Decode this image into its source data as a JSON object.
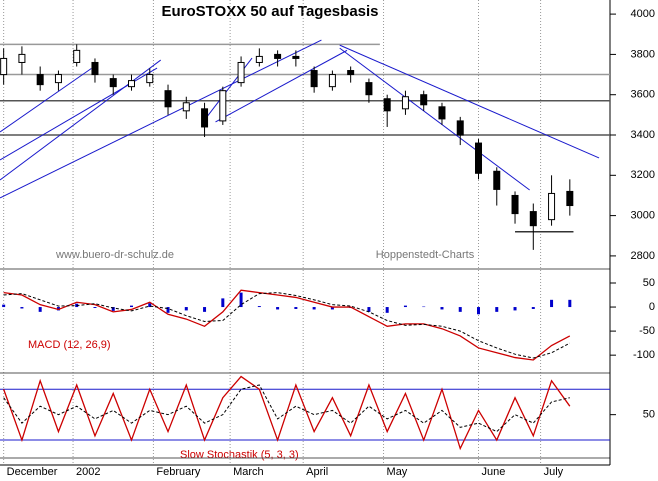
{
  "chart_data": [
    {
      "type": "candlestick",
      "title": "EuroSTOXX 50 auf Tagesbasis",
      "annotations": [
        "www.buero-dr-schulz.de",
        "Hoppenstedt-Charts"
      ],
      "x": [
        0,
        5,
        10,
        15,
        20,
        25,
        30,
        35,
        40,
        45,
        50,
        55,
        60,
        65,
        70,
        75,
        80,
        85,
        90,
        95,
        100,
        105,
        110,
        115,
        120,
        125,
        130,
        135,
        140,
        145,
        150,
        155
      ],
      "open": [
        3700,
        3760,
        3700,
        3660,
        3760,
        3760,
        3680,
        3640,
        3660,
        3620,
        3520,
        3530,
        3470,
        3660,
        3760,
        3800,
        3790,
        3720,
        3640,
        3720,
        3660,
        3580,
        3530,
        3600,
        3540,
        3470,
        3360,
        3220,
        3100,
        3020,
        2980,
        3120
      ],
      "high": [
        3830,
        3840,
        3740,
        3720,
        3850,
        3780,
        3700,
        3700,
        3730,
        3650,
        3590,
        3560,
        3640,
        3790,
        3830,
        3820,
        3820,
        3740,
        3720,
        3740,
        3680,
        3600,
        3620,
        3620,
        3560,
        3490,
        3380,
        3240,
        3120,
        3060,
        3200,
        3180
      ],
      "low": [
        3650,
        3700,
        3620,
        3620,
        3740,
        3660,
        3600,
        3620,
        3640,
        3500,
        3480,
        3390,
        3450,
        3640,
        3740,
        3740,
        3740,
        3610,
        3620,
        3660,
        3560,
        3440,
        3500,
        3520,
        3450,
        3350,
        3180,
        3050,
        2960,
        2830,
        2950,
        3000
      ],
      "close": [
        3780,
        3800,
        3650,
        3700,
        3820,
        3700,
        3640,
        3670,
        3700,
        3540,
        3560,
        3440,
        3620,
        3760,
        3790,
        3780,
        3780,
        3640,
        3700,
        3700,
        3600,
        3520,
        3590,
        3550,
        3480,
        3400,
        3210,
        3130,
        3010,
        2950,
        3110,
        3050
      ],
      "trendlines": [
        {
          "x": [
            -1,
            24
          ],
          "y": [
            3415,
            3730
          ]
        },
        {
          "x": [
            -1,
            42
          ],
          "y": [
            3276,
            3732
          ]
        },
        {
          "x": [
            -1,
            43
          ],
          "y": [
            3177,
            3772
          ]
        },
        {
          "x": [
            -1,
            87
          ],
          "y": [
            3088,
            3871
          ]
        },
        {
          "x": [
            55,
            68
          ],
          "y": [
            3475,
            3782
          ]
        },
        {
          "x": [
            58,
            94
          ],
          "y": [
            3465,
            3820
          ]
        },
        {
          "x": [
            92,
            163
          ],
          "y": [
            3846,
            3286
          ]
        },
        {
          "x": [
            92,
            144
          ],
          "y": [
            3831,
            3127
          ]
        }
      ],
      "levels": [
        {
          "y": 3850,
          "x": [
            -1,
            103
          ],
          "color": "#999999"
        },
        {
          "y": 3700,
          "x": [
            -1,
            166
          ],
          "color": "#999999"
        },
        {
          "y": 3570,
          "x": [
            -1,
            166
          ],
          "color": "#555555"
        },
        {
          "y": 3400,
          "x": [
            -1,
            166
          ],
          "color": "#555555"
        },
        {
          "y": 2920,
          "x": [
            140,
            156
          ],
          "color": "#333333"
        }
      ],
      "xlim": [
        -1,
        166
      ],
      "xticks": [
        {
          "value": 0,
          "label": "December"
        },
        {
          "value": 19,
          "label": "2002"
        },
        {
          "value": 41,
          "label": "February"
        },
        {
          "value": 62,
          "label": "March"
        },
        {
          "value": 82,
          "label": "April"
        },
        {
          "value": 104,
          "label": "May"
        },
        {
          "value": 130,
          "label": "June"
        },
        {
          "value": 147,
          "label": "July"
        }
      ],
      "ylim": [
        2740,
        4070
      ],
      "yticks": [
        2800,
        3000,
        3200,
        3400,
        3600,
        3800,
        4000
      ]
    },
    {
      "type": "line",
      "label": "MACD (12, 26,9)",
      "series": [
        {
          "color": "#0000cc",
          "style": "bar",
          "values": [
            5,
            -3,
            -10,
            -7,
            7,
            -2,
            -8,
            3,
            8,
            -12,
            -7,
            -10,
            18,
            30,
            2,
            -5,
            -4,
            -5,
            -5,
            -2,
            -10,
            -12,
            3,
            1,
            -5,
            -10,
            -15,
            -10,
            -7,
            -4,
            15,
            15
          ]
        },
        {
          "color": "#cc0000",
          "style": "solid",
          "values": [
            30,
            25,
            5,
            -5,
            10,
            5,
            -10,
            -5,
            10,
            -15,
            -25,
            -40,
            -10,
            35,
            30,
            25,
            20,
            10,
            0,
            0,
            -20,
            -40,
            -35,
            -35,
            -45,
            -60,
            -85,
            -95,
            -105,
            -110,
            -80,
            -60
          ]
        },
        {
          "color": "#000000",
          "style": "dashed",
          "values": [
            25,
            28,
            15,
            2,
            3,
            7,
            -2,
            -8,
            2,
            -3,
            -18,
            -30,
            -28,
            5,
            28,
            30,
            24,
            15,
            5,
            2,
            -10,
            -28,
            -38,
            -36,
            -40,
            -50,
            -70,
            -85,
            -98,
            -106,
            -95,
            -75
          ]
        }
      ],
      "ylim": [
        -135,
        77
      ],
      "yticks": [
        50,
        0,
        -50,
        -100
      ]
    },
    {
      "type": "line",
      "label": "Slow Stochastik (5, 3, 3)",
      "series": [
        {
          "color": "#cc0000",
          "style": "solid",
          "values": [
            80,
            20,
            90,
            30,
            85,
            25,
            75,
            20,
            80,
            30,
            85,
            20,
            70,
            95,
            80,
            20,
            85,
            30,
            70,
            25,
            85,
            30,
            75,
            20,
            80,
            10,
            55,
            20,
            70,
            25,
            90,
            60
          ]
        },
        {
          "color": "#000000",
          "style": "dashed",
          "values": [
            70,
            40,
            60,
            50,
            60,
            45,
            55,
            40,
            55,
            50,
            60,
            40,
            50,
            80,
            85,
            45,
            60,
            50,
            55,
            40,
            60,
            45,
            55,
            40,
            55,
            35,
            40,
            30,
            50,
            40,
            65,
            70
          ]
        }
      ],
      "levels": [
        80,
        20
      ],
      "ylim": [
        0,
        98
      ],
      "yticks": [
        50
      ]
    }
  ]
}
